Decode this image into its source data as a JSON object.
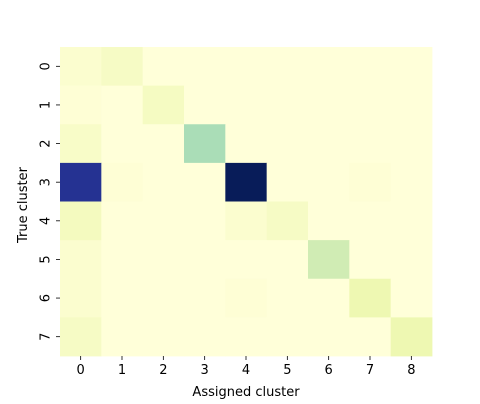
{
  "chart_data": {
    "type": "heatmap",
    "xlabel": "Assigned cluster",
    "ylabel": "True cluster",
    "x_ticks": [
      "0",
      "1",
      "2",
      "3",
      "4",
      "5",
      "6",
      "7",
      "8"
    ],
    "y_ticks": [
      "0",
      "1",
      "2",
      "3",
      "4",
      "5",
      "6",
      "7"
    ],
    "colormap": "YlGnBu",
    "value_range": [
      0,
      1
    ],
    "colorbar": false,
    "grid": false,
    "values": [
      [
        0.03,
        0.06,
        0.0,
        0.0,
        0.0,
        0.0,
        0.0,
        0.0,
        0.0
      ],
      [
        0.01,
        0.0,
        0.07,
        0.0,
        0.0,
        0.0,
        0.0,
        0.0,
        0.0
      ],
      [
        0.05,
        0.0,
        0.0,
        0.3,
        0.0,
        0.0,
        0.0,
        0.0,
        0.0
      ],
      [
        0.88,
        0.01,
        0.0,
        0.0,
        1.0,
        0.0,
        0.0,
        0.01,
        0.0
      ],
      [
        0.08,
        0.0,
        0.0,
        0.0,
        0.03,
        0.06,
        0.0,
        0.0,
        0.0
      ],
      [
        0.03,
        0.0,
        0.0,
        0.0,
        0.0,
        0.0,
        0.22,
        0.0,
        0.0
      ],
      [
        0.03,
        0.0,
        0.0,
        0.0,
        0.01,
        0.0,
        0.0,
        0.12,
        0.0
      ],
      [
        0.06,
        0.0,
        0.0,
        0.0,
        0.0,
        0.0,
        0.0,
        0.0,
        0.12
      ]
    ]
  }
}
